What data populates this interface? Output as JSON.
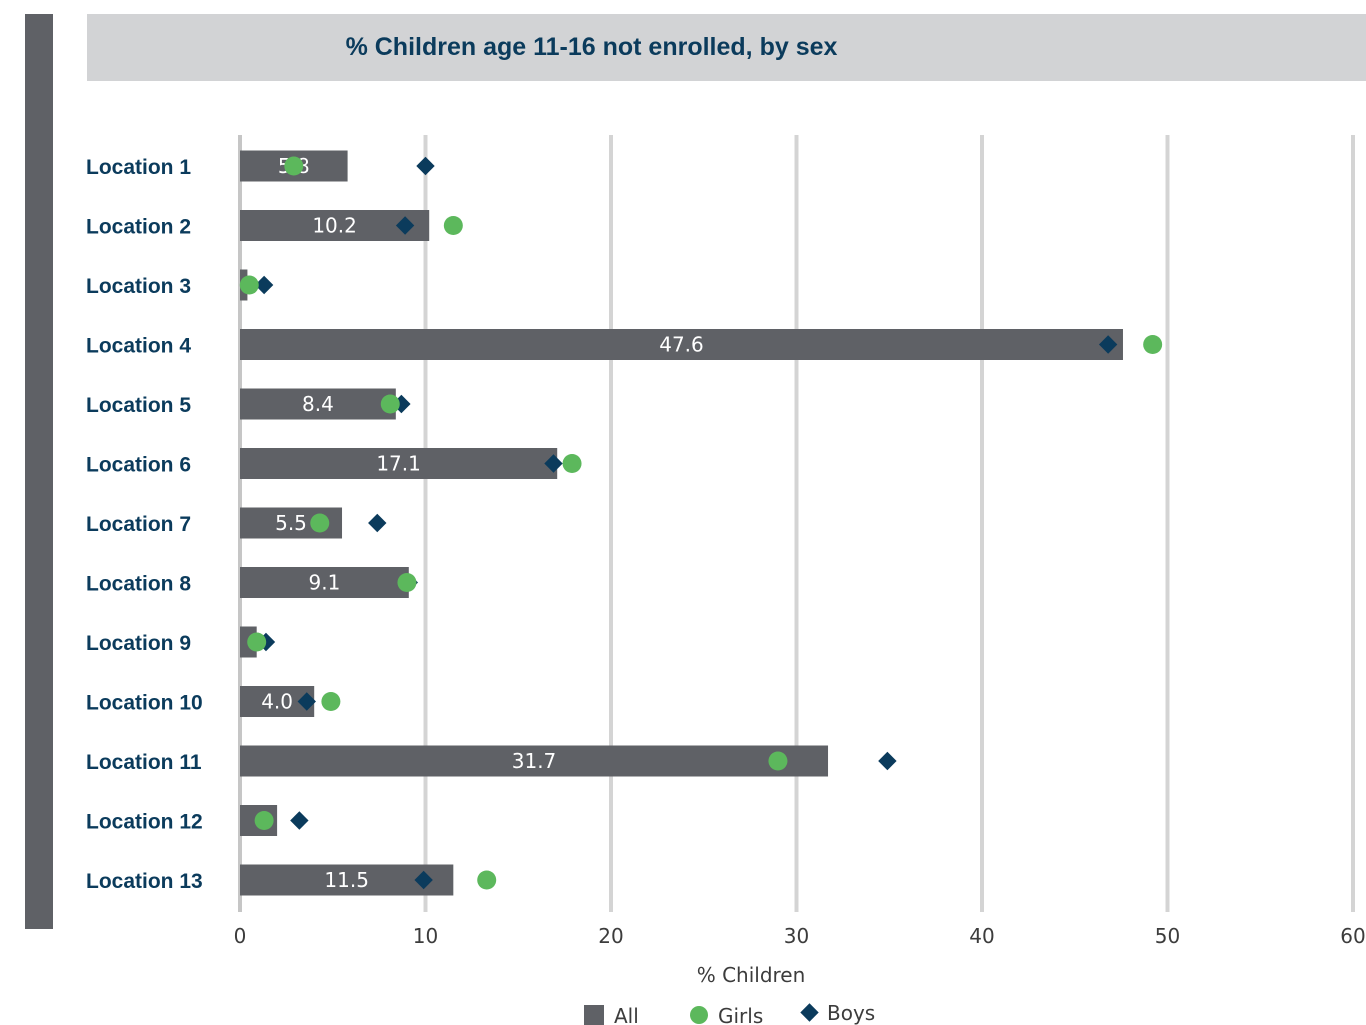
{
  "colors": {
    "background": "#ffffff",
    "band": "#5f6166",
    "title_bar": "#d2d3d5",
    "title_text": "#0b3b5c",
    "bar_all": "#5f6166",
    "girls": "#5cb85c",
    "boys": "#0b3b5c",
    "gridline": "#d4d4d4"
  },
  "chart_data": {
    "type": "bar",
    "orientation": "horizontal",
    "title": "% Children age 11-16 not enrolled, by sex",
    "xlabel": "% Children",
    "ylabel": "",
    "xlim": [
      0,
      60
    ],
    "x_ticks": [
      "0",
      "10",
      "20",
      "30",
      "40",
      "50",
      "60"
    ],
    "grid": true,
    "legend_position": "bottom",
    "categories": [
      "Location 1",
      "Location 2",
      "Location 3",
      "Location 4",
      "Location 5",
      "Location 6",
      "Location 7",
      "Location 8",
      "Location 9",
      "Location 10",
      "Location 11",
      "Location 12",
      "Location 13"
    ],
    "series": [
      {
        "name": "All",
        "mark": "bar",
        "values": [
          5.8,
          10.2,
          0.4,
          47.6,
          8.4,
          17.1,
          5.5,
          9.1,
          0.9,
          4.0,
          31.7,
          2.0,
          11.5
        ],
        "data_labels": [
          "5.8",
          "10.2",
          "",
          "47.6",
          "8.4",
          "17.1",
          "5.5",
          "9.1",
          "",
          "4.0",
          "31.7",
          "",
          "11.5"
        ]
      },
      {
        "name": "Girls",
        "mark": "circle",
        "values": [
          2.9,
          11.5,
          0.5,
          49.2,
          8.1,
          17.9,
          4.3,
          9.0,
          0.9,
          4.9,
          29.0,
          1.3,
          13.3
        ]
      },
      {
        "name": "Boys",
        "mark": "diamond",
        "values": [
          10.0,
          8.9,
          1.3,
          46.8,
          8.7,
          16.9,
          7.4,
          9.1,
          1.4,
          3.6,
          34.9,
          3.2,
          9.9
        ]
      }
    ]
  }
}
